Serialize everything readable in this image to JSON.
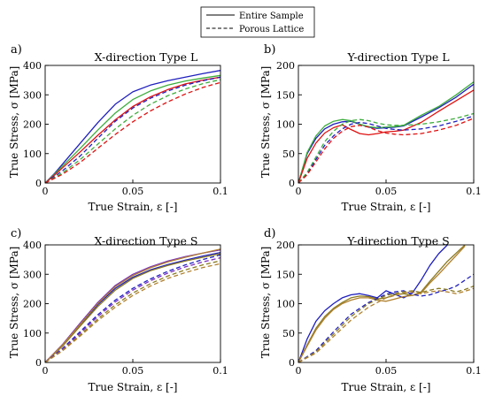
{
  "legend": {
    "solid_label": "Entire Sample",
    "dashed_label": "Porous Lattice"
  },
  "colors": {
    "blue": "#1f1fbf",
    "green": "#3cad3c",
    "red": "#e01010",
    "purple": "#7a2ec0",
    "olive": "#8a7a1f",
    "brown": "#b0802e"
  },
  "chart_data": [
    {
      "panel": "a)",
      "type": "line",
      "title": "X-direction Type L",
      "xlabel": "True Strain, ε [-]",
      "ylabel": "True Stress, σ [MPa]",
      "xlim": [
        0,
        0.1
      ],
      "ylim": [
        0,
        400
      ],
      "xticks": [
        "0",
        "0.05",
        "0.1"
      ],
      "yticks": [
        "0",
        "100",
        "200",
        "300",
        "400"
      ],
      "series": [
        {
          "style": "solid",
          "color": "blue",
          "x": [
            0,
            0.005,
            0.01,
            0.02,
            0.03,
            0.04,
            0.05,
            0.06,
            0.07,
            0.08,
            0.09,
            0.1
          ],
          "y": [
            0,
            30,
            65,
            135,
            205,
            268,
            310,
            333,
            348,
            360,
            372,
            383
          ]
        },
        {
          "style": "solid",
          "color": "green",
          "x": [
            0,
            0.005,
            0.01,
            0.02,
            0.03,
            0.04,
            0.05,
            0.06,
            0.07,
            0.08,
            0.09,
            0.1
          ],
          "y": [
            0,
            28,
            58,
            118,
            180,
            238,
            284,
            313,
            333,
            347,
            357,
            366
          ]
        },
        {
          "style": "solid",
          "color": "red",
          "x": [
            0,
            0.005,
            0.01,
            0.02,
            0.03,
            0.04,
            0.05,
            0.06,
            0.07,
            0.08,
            0.09,
            0.1
          ],
          "y": [
            0,
            25,
            52,
            106,
            162,
            215,
            260,
            293,
            318,
            337,
            350,
            360
          ]
        },
        {
          "style": "dashed",
          "color": "blue",
          "x": [
            0,
            0.01,
            0.02,
            0.03,
            0.04,
            0.05,
            0.06,
            0.07,
            0.08,
            0.09,
            0.1
          ],
          "y": [
            0,
            42,
            92,
            152,
            210,
            255,
            288,
            313,
            333,
            348,
            360
          ]
        },
        {
          "style": "dashed",
          "color": "green",
          "x": [
            0,
            0.01,
            0.02,
            0.03,
            0.04,
            0.05,
            0.06,
            0.07,
            0.08,
            0.09,
            0.1
          ],
          "y": [
            0,
            35,
            80,
            132,
            184,
            230,
            268,
            297,
            320,
            338,
            352
          ]
        },
        {
          "style": "dashed",
          "color": "red",
          "x": [
            0,
            0.01,
            0.02,
            0.03,
            0.04,
            0.05,
            0.06,
            0.07,
            0.08,
            0.09,
            0.1
          ],
          "y": [
            0,
            30,
            70,
            118,
            165,
            208,
            245,
            276,
            303,
            325,
            342
          ]
        }
      ]
    },
    {
      "panel": "b)",
      "type": "line",
      "title": "Y-direction Type L",
      "xlabel": "True Strain, ε [-]",
      "ylabel": "True Stress, σ [MPa]",
      "xlim": [
        0,
        0.1
      ],
      "ylim": [
        0,
        200
      ],
      "xticks": [
        "0",
        "0.05",
        "0.1"
      ],
      "yticks": [
        "0",
        "50",
        "100",
        "150",
        "200"
      ],
      "series": [
        {
          "style": "solid",
          "color": "blue",
          "x": [
            0,
            0.005,
            0.01,
            0.015,
            0.02,
            0.025,
            0.03,
            0.035,
            0.04,
            0.045,
            0.05,
            0.055,
            0.06,
            0.07,
            0.08,
            0.09,
            0.1
          ],
          "y": [
            0,
            50,
            76,
            92,
            100,
            104,
            105,
            100,
            95,
            93,
            94,
            95,
            97,
            112,
            128,
            146,
            168
          ]
        },
        {
          "style": "solid",
          "color": "green",
          "x": [
            0,
            0.005,
            0.01,
            0.015,
            0.02,
            0.025,
            0.03,
            0.035,
            0.04,
            0.045,
            0.05,
            0.055,
            0.06,
            0.07,
            0.08,
            0.09,
            0.1
          ],
          "y": [
            0,
            52,
            80,
            97,
            105,
            108,
            106,
            100,
            96,
            94,
            95,
            96,
            98,
            115,
            130,
            150,
            172
          ]
        },
        {
          "style": "solid",
          "color": "red",
          "x": [
            0,
            0.005,
            0.01,
            0.015,
            0.02,
            0.025,
            0.03,
            0.035,
            0.04,
            0.045,
            0.05,
            0.055,
            0.06,
            0.07,
            0.08,
            0.09,
            0.1
          ],
          "y": [
            0,
            42,
            68,
            85,
            94,
            99,
            91,
            84,
            82,
            84,
            87,
            88,
            90,
            103,
            122,
            140,
            158
          ]
        },
        {
          "style": "dashed",
          "color": "blue",
          "x": [
            0,
            0.005,
            0.01,
            0.015,
            0.02,
            0.025,
            0.03,
            0.035,
            0.04,
            0.045,
            0.05,
            0.055,
            0.06,
            0.07,
            0.08,
            0.09,
            0.1
          ],
          "y": [
            0,
            16,
            40,
            64,
            80,
            92,
            100,
            103,
            101,
            97,
            93,
            91,
            90,
            92,
            97,
            105,
            114
          ]
        },
        {
          "style": "dashed",
          "color": "green",
          "x": [
            0,
            0.005,
            0.01,
            0.015,
            0.02,
            0.025,
            0.03,
            0.035,
            0.04,
            0.045,
            0.05,
            0.055,
            0.06,
            0.07,
            0.08,
            0.09,
            0.1
          ],
          "y": [
            0,
            18,
            44,
            70,
            88,
            100,
            106,
            108,
            106,
            102,
            99,
            98,
            98,
            100,
            104,
            110,
            118
          ]
        },
        {
          "style": "dashed",
          "color": "red",
          "x": [
            0,
            0.005,
            0.01,
            0.015,
            0.02,
            0.025,
            0.03,
            0.035,
            0.04,
            0.045,
            0.05,
            0.055,
            0.06,
            0.07,
            0.08,
            0.09,
            0.1
          ],
          "y": [
            0,
            14,
            36,
            58,
            76,
            88,
            96,
            98,
            95,
            89,
            85,
            83,
            82,
            84,
            90,
            98,
            110
          ]
        }
      ]
    },
    {
      "panel": "c)",
      "type": "line",
      "title": "X-direction Type S",
      "xlabel": "True Strain, ε [-]",
      "ylabel": "True Stress, σ [MPa]",
      "xlim": [
        0,
        0.1
      ],
      "ylim": [
        0,
        400
      ],
      "xticks": [
        "0",
        "0.05",
        "0.1"
      ],
      "yticks": [
        "0",
        "100",
        "200",
        "300",
        "400"
      ],
      "series": [
        {
          "style": "solid",
          "color": "blue",
          "x": [
            0,
            0.01,
            0.02,
            0.03,
            0.04,
            0.05,
            0.06,
            0.07,
            0.08,
            0.09,
            0.1
          ],
          "y": [
            0,
            58,
            128,
            196,
            252,
            290,
            315,
            333,
            348,
            362,
            374
          ]
        },
        {
          "style": "solid",
          "color": "purple",
          "x": [
            0,
            0.01,
            0.02,
            0.03,
            0.04,
            0.05,
            0.06,
            0.07,
            0.08,
            0.09,
            0.1
          ],
          "y": [
            0,
            62,
            134,
            204,
            262,
            300,
            325,
            345,
            360,
            372,
            383
          ]
        },
        {
          "style": "solid",
          "color": "olive",
          "x": [
            0,
            0.01,
            0.02,
            0.03,
            0.04,
            0.05,
            0.06,
            0.07,
            0.08,
            0.09,
            0.1
          ],
          "y": [
            0,
            56,
            124,
            190,
            246,
            286,
            312,
            330,
            345,
            358,
            370
          ]
        },
        {
          "style": "solid",
          "color": "brown",
          "x": [
            0,
            0.01,
            0.02,
            0.03,
            0.04,
            0.05,
            0.06,
            0.07,
            0.08,
            0.09,
            0.1
          ],
          "y": [
            0,
            60,
            130,
            200,
            258,
            296,
            322,
            342,
            358,
            372,
            386
          ]
        },
        {
          "style": "dashed",
          "color": "blue",
          "x": [
            0,
            0.01,
            0.02,
            0.03,
            0.04,
            0.05,
            0.06,
            0.07,
            0.08,
            0.09,
            0.1
          ],
          "y": [
            0,
            48,
            105,
            162,
            212,
            252,
            284,
            310,
            332,
            350,
            366
          ]
        },
        {
          "style": "dashed",
          "color": "purple",
          "x": [
            0,
            0.01,
            0.02,
            0.03,
            0.04,
            0.05,
            0.06,
            0.07,
            0.08,
            0.09,
            0.1
          ],
          "y": [
            0,
            45,
            100,
            156,
            206,
            246,
            278,
            304,
            325,
            342,
            356
          ]
        },
        {
          "style": "dashed",
          "color": "olive",
          "x": [
            0,
            0.01,
            0.02,
            0.03,
            0.04,
            0.05,
            0.06,
            0.07,
            0.08,
            0.09,
            0.1
          ],
          "y": [
            0,
            42,
            94,
            148,
            196,
            236,
            268,
            294,
            315,
            332,
            346
          ]
        },
        {
          "style": "dashed",
          "color": "brown",
          "x": [
            0,
            0.01,
            0.02,
            0.03,
            0.04,
            0.05,
            0.06,
            0.07,
            0.08,
            0.09,
            0.1
          ],
          "y": [
            0,
            40,
            90,
            142,
            188,
            228,
            260,
            286,
            306,
            323,
            336
          ]
        }
      ]
    },
    {
      "panel": "d)",
      "type": "line",
      "title": "Y-direction Type S",
      "xlabel": "True Strain, ε [-]",
      "ylabel": "True Stress, σ [MPa]",
      "xlim": [
        0,
        0.1
      ],
      "ylim": [
        0,
        200
      ],
      "xticks": [
        "0",
        "0.05",
        "0.1"
      ],
      "yticks": [
        "0",
        "50",
        "100",
        "150",
        "200"
      ],
      "series": [
        {
          "style": "solid",
          "color": "blue",
          "x": [
            0,
            0.005,
            0.01,
            0.015,
            0.02,
            0.025,
            0.03,
            0.035,
            0.04,
            0.045,
            0.05,
            0.055,
            0.06,
            0.065,
            0.07,
            0.075,
            0.08,
            0.085
          ],
          "y": [
            0,
            40,
            70,
            88,
            100,
            110,
            115,
            117,
            114,
            110,
            122,
            116,
            110,
            118,
            140,
            165,
            185,
            200
          ]
        },
        {
          "style": "solid",
          "color": "olive",
          "x": [
            0,
            0.005,
            0.01,
            0.015,
            0.02,
            0.025,
            0.03,
            0.035,
            0.04,
            0.045,
            0.05,
            0.055,
            0.06,
            0.065,
            0.07,
            0.075,
            0.08,
            0.085,
            0.09,
            0.095
          ],
          "y": [
            0,
            30,
            58,
            78,
            92,
            102,
            110,
            113,
            112,
            108,
            110,
            115,
            117,
            114,
            120,
            138,
            155,
            172,
            186,
            200
          ]
        },
        {
          "style": "solid",
          "color": "brown",
          "x": [
            0,
            0.005,
            0.01,
            0.015,
            0.02,
            0.025,
            0.03,
            0.035,
            0.04,
            0.045,
            0.05,
            0.055,
            0.06,
            0.065,
            0.07,
            0.075,
            0.08,
            0.085,
            0.09,
            0.095
          ],
          "y": [
            0,
            28,
            55,
            75,
            90,
            100,
            106,
            110,
            110,
            106,
            104,
            108,
            112,
            114,
            118,
            135,
            150,
            166,
            182,
            198
          ]
        },
        {
          "style": "dashed",
          "color": "blue",
          "x": [
            0,
            0.01,
            0.02,
            0.03,
            0.04,
            0.05,
            0.055,
            0.06,
            0.065,
            0.07,
            0.075,
            0.08,
            0.085,
            0.09,
            0.095,
            0.1
          ],
          "y": [
            0,
            20,
            52,
            82,
            102,
            116,
            120,
            122,
            116,
            113,
            115,
            120,
            124,
            130,
            140,
            150
          ]
        },
        {
          "style": "dashed",
          "color": "olive",
          "x": [
            0,
            0.01,
            0.02,
            0.03,
            0.04,
            0.05,
            0.06,
            0.065,
            0.07,
            0.075,
            0.08,
            0.085,
            0.09,
            0.095,
            0.1
          ],
          "y": [
            0,
            18,
            48,
            78,
            100,
            114,
            120,
            122,
            119,
            123,
            126,
            124,
            120,
            124,
            130
          ]
        },
        {
          "style": "dashed",
          "color": "brown",
          "x": [
            0,
            0.01,
            0.02,
            0.03,
            0.04,
            0.05,
            0.06,
            0.065,
            0.07,
            0.075,
            0.08,
            0.085,
            0.09,
            0.095,
            0.1
          ],
          "y": [
            0,
            16,
            44,
            72,
            94,
            110,
            118,
            120,
            117,
            120,
            122,
            120,
            117,
            121,
            126
          ]
        }
      ]
    }
  ]
}
